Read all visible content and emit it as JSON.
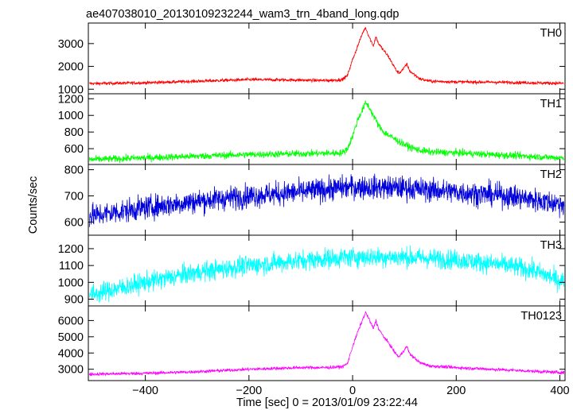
{
  "chart_data": {
    "type": "line",
    "title": "ae407038010_20130109232244_wam3_trn_4band_long.qdp",
    "xlabel": "Time [sec] 0 = 2013/01/09 23:22:44",
    "ylabel": "Counts/sec",
    "xlim": [
      -510,
      410
    ],
    "x_ticks": [
      -400,
      -200,
      0,
      200,
      400
    ],
    "x_tick_labels": [
      "−400",
      "−200",
      "0",
      "200",
      "400"
    ],
    "grid": false,
    "panels": [
      {
        "name": "TH0",
        "color": "#ff0000",
        "ylim": [
          800,
          3900
        ],
        "yticks": [
          1000,
          2000,
          3000
        ],
        "ytick_labels": [
          "1000",
          "2000",
          "3000"
        ],
        "x": [
          -500,
          -400,
          -300,
          -200,
          -100,
          -50,
          -20,
          -10,
          0,
          10,
          20,
          25,
          30,
          40,
          45,
          50,
          60,
          70,
          80,
          85,
          90,
          100,
          105,
          110,
          130,
          150,
          200,
          300,
          400
        ],
        "values": [
          1250,
          1280,
          1350,
          1420,
          1400,
          1380,
          1420,
          1600,
          2300,
          2900,
          3500,
          3700,
          3400,
          2900,
          3300,
          3000,
          2700,
          2400,
          2000,
          1800,
          1700,
          1950,
          2100,
          1800,
          1450,
          1350,
          1320,
          1300,
          1260
        ],
        "noise": 50
      },
      {
        "name": "TH1",
        "color": "#00ff00",
        "ylim": [
          410,
          1260
        ],
        "yticks": [
          600,
          800,
          1000,
          1200
        ],
        "ytick_labels": [
          "600",
          "800",
          "1000",
          "1200"
        ],
        "x": [
          -500,
          -400,
          -300,
          -200,
          -100,
          -50,
          -20,
          -10,
          0,
          10,
          20,
          25,
          30,
          40,
          50,
          60,
          80,
          100,
          110,
          130,
          150,
          200,
          300,
          400
        ],
        "values": [
          470,
          490,
          510,
          530,
          540,
          545,
          550,
          600,
          750,
          950,
          1080,
          1150,
          1120,
          1000,
          880,
          800,
          720,
          650,
          620,
          580,
          560,
          550,
          520,
          490
        ],
        "noise": 30
      },
      {
        "name": "TH2",
        "color": "#0000dd",
        "ylim": [
          550,
          820
        ],
        "yticks": [
          600,
          700,
          800
        ],
        "ytick_labels": [
          "600",
          "700",
          "800"
        ],
        "x": [
          -500,
          -400,
          -300,
          -200,
          -100,
          0,
          100,
          200,
          300,
          400
        ],
        "values": [
          625,
          655,
          680,
          700,
          715,
          735,
          730,
          715,
          700,
          670
        ],
        "noise": 32
      },
      {
        "name": "TH3",
        "color": "#00ffff",
        "ylim": [
          860,
          1280
        ],
        "yticks": [
          900,
          1000,
          1100,
          1200
        ],
        "ytick_labels": [
          "900",
          "1000",
          "1100",
          "1200"
        ],
        "x": [
          -500,
          -400,
          -300,
          -200,
          -100,
          0,
          100,
          200,
          300,
          350,
          400
        ],
        "values": [
          930,
          1000,
          1060,
          1100,
          1130,
          1150,
          1150,
          1135,
          1100,
          1070,
          1010
        ],
        "noise": 42
      },
      {
        "name": "TH0123",
        "color": "#ff00ff",
        "ylim": [
          2300,
          6900
        ],
        "yticks": [
          3000,
          4000,
          5000,
          6000
        ],
        "ytick_labels": [
          "3000",
          "4000",
          "5000",
          "6000"
        ],
        "x": [
          -500,
          -400,
          -300,
          -200,
          -100,
          -50,
          -20,
          -10,
          0,
          10,
          20,
          25,
          30,
          40,
          45,
          50,
          60,
          70,
          80,
          85,
          90,
          100,
          105,
          110,
          130,
          150,
          200,
          300,
          400
        ],
        "values": [
          2700,
          2750,
          2850,
          3000,
          3100,
          3100,
          3150,
          3350,
          4400,
          5300,
          6100,
          6500,
          6200,
          5500,
          6000,
          5500,
          5000,
          4600,
          4100,
          3900,
          3750,
          4200,
          4400,
          3950,
          3400,
          3200,
          3100,
          2950,
          2800
        ],
        "noise": 70
      }
    ]
  }
}
